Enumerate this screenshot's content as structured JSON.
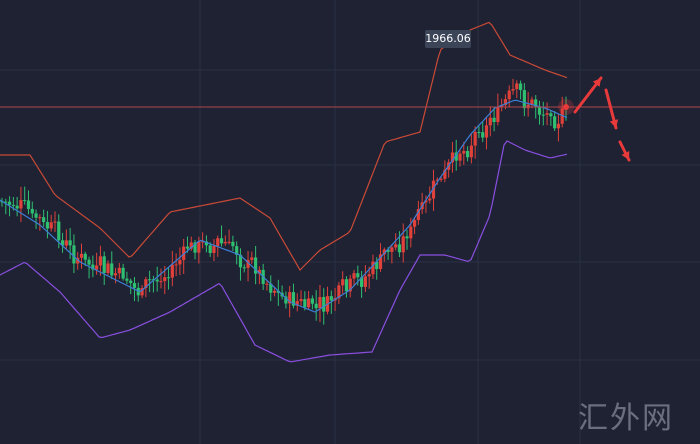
{
  "price_label": "1966.06",
  "watermark": "汇外网",
  "colors": {
    "background": "#1e2233",
    "grid": "#2a3044",
    "up": "#e0413a",
    "down": "#2fbf71",
    "bb_upper": "#c94a36",
    "bb_middle": "#3d7fd6",
    "bb_lower": "#8a4fe0",
    "current_line": "#b0474e",
    "arrow": "#e83a3a"
  },
  "chart_data": {
    "type": "candlestick",
    "price_line": 1966.06,
    "ylim": [
      1900,
      2000
    ],
    "candles_count": 150,
    "bollinger": {
      "upper": true,
      "middle": true,
      "lower": true
    },
    "arrows": [
      "up",
      "down",
      "down"
    ],
    "grid": true
  }
}
